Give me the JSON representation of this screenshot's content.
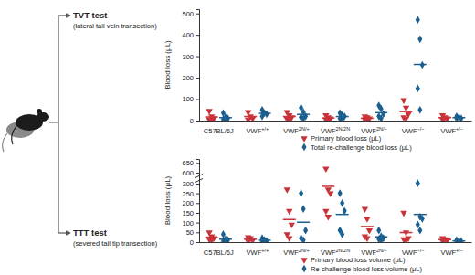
{
  "chart_data": [
    {
      "type": "scatter",
      "title": "TVT test",
      "subtitle": "(lateral tail vein transection)",
      "categories": [
        "C57BL/6J",
        "VWF+/+",
        "VWF2N/+",
        "VWF2N/2N",
        "VWF2N/−",
        "VWF−/−",
        "VWF+/−"
      ],
      "y_label": "Blood loss (μL)",
      "ylim": [
        0,
        520
      ],
      "yticks": [
        0,
        100,
        200,
        300,
        400,
        500
      ],
      "legend": "bottom right",
      "series": [
        {
          "name": "Primary blood loss (μL)",
          "color": "#c8333a",
          "marker": "triangle-down",
          "values": [
            [
              45,
              20,
              10,
              5,
              5
            ],
            [
              40,
              20,
              10,
              5
            ],
            [
              40,
              25,
              15,
              8,
              5
            ],
            [
              25,
              15,
              10,
              5,
              5
            ],
            [
              20,
              15,
              10,
              5,
              5
            ],
            [
              95,
              60,
              30,
              15,
              10
            ],
            [
              25,
              15,
              10,
              5
            ]
          ],
          "means": [
            17,
            19,
            19,
            12,
            11,
            42,
            14
          ]
        },
        {
          "name": "Total re-challenge blood loss (μL)",
          "color": "#1a5f8e",
          "marker": "diamond",
          "values": [
            [
              35,
              15,
              10,
              5,
              5
            ],
            [
              50,
              35,
              30,
              20
            ],
            [
              60,
              40,
              20,
              15,
              10
            ],
            [
              35,
              25,
              20,
              10,
              5
            ],
            [
              70,
              55,
              30,
              20,
              10
            ],
            [
              470,
              380,
              260,
              150,
              50
            ],
            [
              20,
              15,
              10,
              10
            ]
          ],
          "means": [
            14,
            34,
            29,
            19,
            37,
            262,
            14
          ]
        }
      ]
    },
    {
      "type": "scatter",
      "title": "TTT test",
      "subtitle": "(severed tail tip transection)",
      "categories": [
        "C57BL/6J",
        "VWF+/+",
        "VWF2N/+",
        "VWF2N/2N",
        "VWF2N/−",
        "VWF−/−",
        "VWF+/−"
      ],
      "y_label": "Blood loss (μL)",
      "ylim": [
        0,
        670
      ],
      "yticks": [
        0,
        50,
        100,
        150,
        200,
        250,
        300,
        600,
        650
      ],
      "legend": "bottom right",
      "series": [
        {
          "name": "Primary blood loss volume (μL)",
          "color": "#c8333a",
          "marker": "triangle-down",
          "values": [
            [
              50,
              30,
              20,
              15,
              10
            ],
            [
              25,
              20,
              10,
              5
            ],
            [
              270,
              160,
              90,
              40,
              20
            ],
            [
              620,
              270,
              250,
              160,
              130
            ],
            [
              170,
              120,
              60,
              30,
              20
            ],
            [
              150,
              50,
              20,
              15,
              10
            ],
            [
              20,
              15,
              10,
              5
            ]
          ],
          "means": [
            25,
            15,
            116,
            286,
            80,
            49,
            13
          ]
        },
        {
          "name": "Re-challenge blood loss volume (μL)",
          "color": "#1a5f8e",
          "marker": "diamond",
          "values": [
            [
              40,
              15,
              10,
              5,
              5
            ],
            [
              20,
              10,
              5,
              5
            ],
            [
              250,
              170,
              60,
              20,
              10
            ],
            [
              250,
              200,
              160,
              60,
              40
            ],
            [
              60,
              30,
              20,
              15,
              10
            ],
            [
              310,
              130,
              120,
              90,
              60
            ],
            [
              10,
              5,
              5,
              5
            ]
          ],
          "means": [
            15,
            10,
            102,
            142,
            27,
            142,
            6
          ]
        }
      ]
    }
  ]
}
